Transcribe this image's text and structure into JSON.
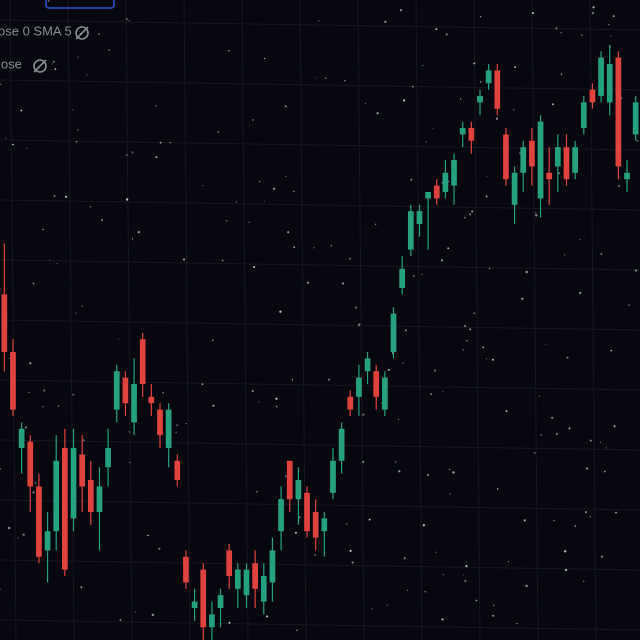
{
  "chart_data": {
    "type": "candlestick",
    "legend": [
      "ose 0 SMA 5",
      "lose"
    ],
    "up_color": "#26a17f",
    "down_color": "#e0433d",
    "ylim": [
      0,
      100
    ],
    "series": {
      "open": [
        54,
        45,
        30,
        31,
        24,
        14,
        17,
        30,
        19,
        29,
        25,
        20,
        27,
        36,
        41,
        34,
        47,
        38,
        36,
        30,
        28,
        13,
        5,
        11,
        2,
        5,
        14,
        8,
        7,
        12,
        6,
        9,
        17,
        28,
        22,
        23,
        20,
        17,
        23,
        28,
        38,
        38,
        42,
        42,
        36,
        45,
        55,
        61,
        65,
        69,
        71,
        70,
        71,
        79,
        80,
        84,
        87,
        89,
        79,
        68,
        73,
        78,
        69,
        73,
        74,
        77,
        73,
        80,
        86,
        85,
        84,
        91,
        72,
        79
      ],
      "high": [
        62,
        47,
        34,
        32,
        26,
        20,
        32,
        33,
        33,
        32,
        28,
        27,
        33,
        43,
        42,
        44,
        48,
        40,
        37,
        37,
        29,
        14,
        8,
        12,
        6,
        8,
        15,
        12,
        12,
        14,
        12,
        16,
        24,
        28,
        27,
        24,
        22,
        20,
        30,
        34,
        39,
        43,
        45,
        43,
        42,
        52,
        60,
        68,
        68,
        70,
        72,
        75,
        76,
        81,
        81,
        86,
        90,
        90,
        80,
        74,
        78,
        80,
        82,
        77,
        79,
        79,
        78,
        85,
        87,
        92,
        93,
        92,
        75,
        85
      ],
      "low": [
        42,
        35,
        26,
        20,
        12,
        9,
        14,
        10,
        17,
        20,
        18,
        14,
        24,
        34,
        35,
        32,
        38,
        35,
        30,
        27,
        24,
        8,
        3,
        0,
        0,
        2,
        8,
        5,
        5,
        5,
        4,
        6,
        14,
        20,
        18,
        16,
        14,
        13,
        22,
        26,
        35,
        35,
        40,
        36,
        35,
        44,
        54,
        60,
        63,
        61,
        68,
        69,
        68,
        77,
        76,
        82,
        86,
        82,
        71,
        65,
        70,
        71,
        66,
        68,
        70,
        71,
        72,
        79,
        83,
        84,
        82,
        72,
        70,
        78
      ],
      "close": [
        45,
        36,
        33,
        24,
        13,
        17,
        28,
        11,
        30,
        24,
        20,
        24,
        30,
        42,
        37,
        40,
        40,
        37,
        32,
        36,
        25,
        9,
        6,
        2,
        4,
        7,
        10,
        11,
        11,
        8,
        10,
        14,
        22,
        22,
        25,
        17,
        16,
        19,
        28,
        33,
        36,
        41,
        44,
        38,
        41,
        51,
        58,
        67,
        67,
        70,
        69,
        73,
        75,
        80,
        78,
        85,
        89,
        83,
        72,
        73,
        77,
        74,
        81,
        72,
        77,
        72,
        77,
        84,
        84,
        91,
        90,
        74,
        73,
        84
      ]
    }
  }
}
